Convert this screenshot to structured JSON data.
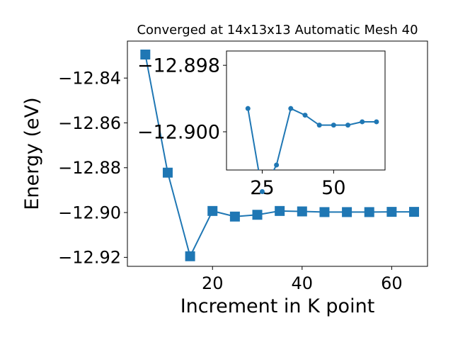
{
  "chart_data": [
    {
      "type": "line",
      "title": "Converged at 14x13x13 Automatic Mesh 40",
      "xlabel": "Increment in K point",
      "ylabel": "Energy (eV)",
      "xlim": [
        1,
        68
      ],
      "ylim": [
        -12.924,
        -12.8235
      ],
      "xticks": [
        20,
        40,
        60
      ],
      "yticks": [
        -12.84,
        -12.86,
        -12.88,
        -12.9,
        -12.92
      ],
      "ytick_labels": [
        "−12.84",
        "−12.86",
        "−12.88",
        "−12.90",
        "−12.92"
      ],
      "xtick_labels": [
        "20",
        "40",
        "60"
      ],
      "grid": false,
      "marker": "square",
      "color": "#1f77b4",
      "series": [
        {
          "x": [
            5,
            10,
            15,
            20,
            25,
            30,
            35,
            40,
            45,
            50,
            55,
            60,
            65
          ],
          "y": [
            -12.8295,
            -12.8822,
            -12.9195,
            -12.8993,
            -12.9018,
            -12.901,
            -12.8993,
            -12.8995,
            -12.8998,
            -12.8998,
            -12.8998,
            -12.8997,
            -12.8997
          ]
        }
      ]
    },
    {
      "type": "line",
      "title": "",
      "xlabel": "",
      "ylabel": "",
      "xlim": [
        12.5,
        68
      ],
      "ylim": [
        -12.90115,
        -12.89757
      ],
      "xticks": [
        25,
        50
      ],
      "xtick_labels": [
        "25",
        "50"
      ],
      "yticks": [
        -12.9,
        -12.898
      ],
      "ytick_labels": [
        "−12.900",
        "−12.898"
      ],
      "grid": false,
      "marker": "circle",
      "color": "#1f77b4",
      "series": [
        {
          "x": [
            20,
            25,
            30,
            35,
            40,
            45,
            50,
            55,
            60,
            65
          ],
          "y": [
            -12.8993,
            -12.9018,
            -12.901,
            -12.8993,
            -12.8995,
            -12.8998,
            -12.8998,
            -12.8998,
            -12.8997,
            -12.8997
          ]
        }
      ]
    }
  ]
}
